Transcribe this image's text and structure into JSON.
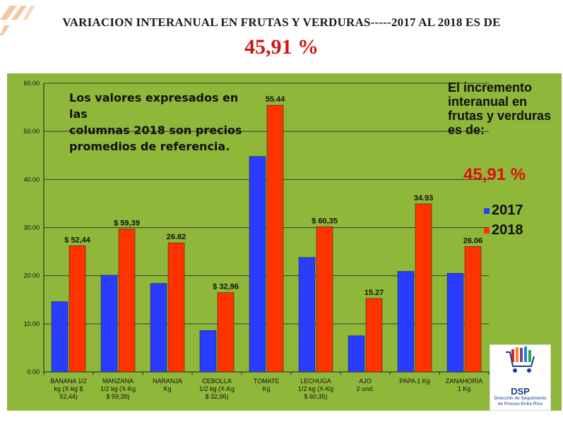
{
  "header": {
    "title": "VARIACION INTERANUAL EN FRUTAS Y VERDURAS-----2017 AL 2018 ES DE",
    "percentage": "45,91 %"
  },
  "notes": {
    "left": "Los valores expresados en las\ncolumnas 2018 son precios promedios de referencia.",
    "right": "El incremento interanual en frutas y verduras\nes de:",
    "right_percentage": "45,91 %"
  },
  "logo": {
    "name": "DSP",
    "subtitle": "Dirección de Seguimiento de Precios-Entre Ríos"
  },
  "colors": {
    "series_2017": "#2a3cff",
    "series_2018": "#ff3300",
    "panel_background": "#8fb73a",
    "title_percentage": "#d01515"
  },
  "chart_data": {
    "type": "bar",
    "categories": [
      "BANANA 1/2 kg (X-kg $ 52,44)",
      "MANZANA 1/2 kg (X-Kg $ 59,39)",
      "NARANJA Kg",
      "CEBOLLA 1/2 kg (X-Kg $ 32,96)",
      "TOMATE Kg",
      "LECHUGA 1/2 kg (X-Kg $ 60,35)",
      "AJO 2 und.",
      "PAPA 1 Kg",
      "ZANAHORIA 1 Kg"
    ],
    "category_label_lines": [
      [
        "BANANA 1/2",
        "kg    (X-kg $",
        "52,44)"
      ],
      [
        "MANZANA",
        "1/2 kg   (X-Kg",
        "$ 59,39)"
      ],
      [
        "NARANJA",
        "Kg"
      ],
      [
        "CEBOLLA",
        "1/2 kg   (X-Kg",
        "$ 32,96)"
      ],
      [
        "TOMATE",
        "Kg"
      ],
      [
        "LECHUGA",
        "1/2 kg   (X-Kg",
        "$ 60,35)"
      ],
      [
        "AJO",
        "2 und."
      ],
      [
        "PAPA    1 Kg"
      ],
      [
        "ZANAHORIA",
        "1 Kg"
      ]
    ],
    "series": [
      {
        "name": "2017",
        "values": [
          14.6,
          20.1,
          18.4,
          8.6,
          44.8,
          23.8,
          7.5,
          20.9,
          20.5
        ]
      },
      {
        "name": "2018",
        "values": [
          26.22,
          29.7,
          26.82,
          16.48,
          55.44,
          30.18,
          15.27,
          34.93,
          26.06
        ]
      }
    ],
    "data_labels_2018": [
      "$ 52,44",
      "$ 59,39",
      "26.82",
      "$ 32,96",
      "55.44",
      "$ 60,35",
      "15.27",
      "34.93",
      "26.06"
    ],
    "y_ticks": [
      "0.00",
      "10.00",
      "20.00",
      "30.00",
      "40.00",
      "50.00",
      "60.00"
    ],
    "ylim": [
      0,
      60
    ],
    "grid": true,
    "legend_placement": "right"
  }
}
